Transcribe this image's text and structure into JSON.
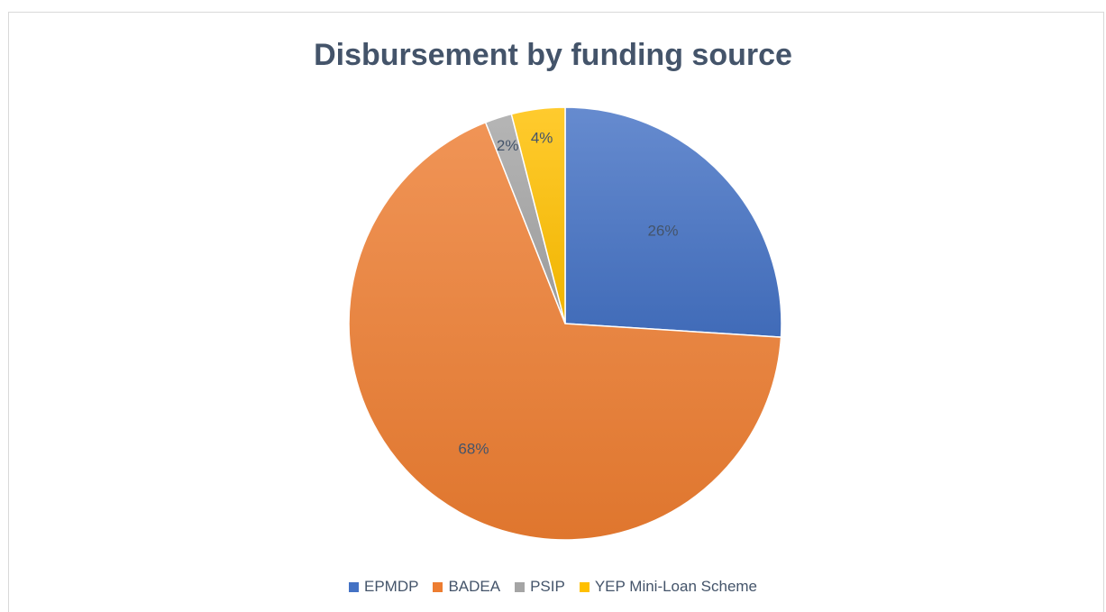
{
  "chart_data": {
    "type": "pie",
    "title": "Disbursement by funding source",
    "categories": [
      "EPMDP",
      "BADEA",
      "PSIP",
      "YEP Mini-Loan Scheme"
    ],
    "values": [
      26,
      68,
      2,
      4
    ],
    "data_labels": [
      "26%",
      "68%",
      "2%",
      "4%"
    ],
    "colors": [
      "#4472c4",
      "#ed7d31",
      "#a5a5a5",
      "#ffc000"
    ],
    "start_angle_deg": 0,
    "direction": "clockwise",
    "legend_position": "bottom"
  }
}
